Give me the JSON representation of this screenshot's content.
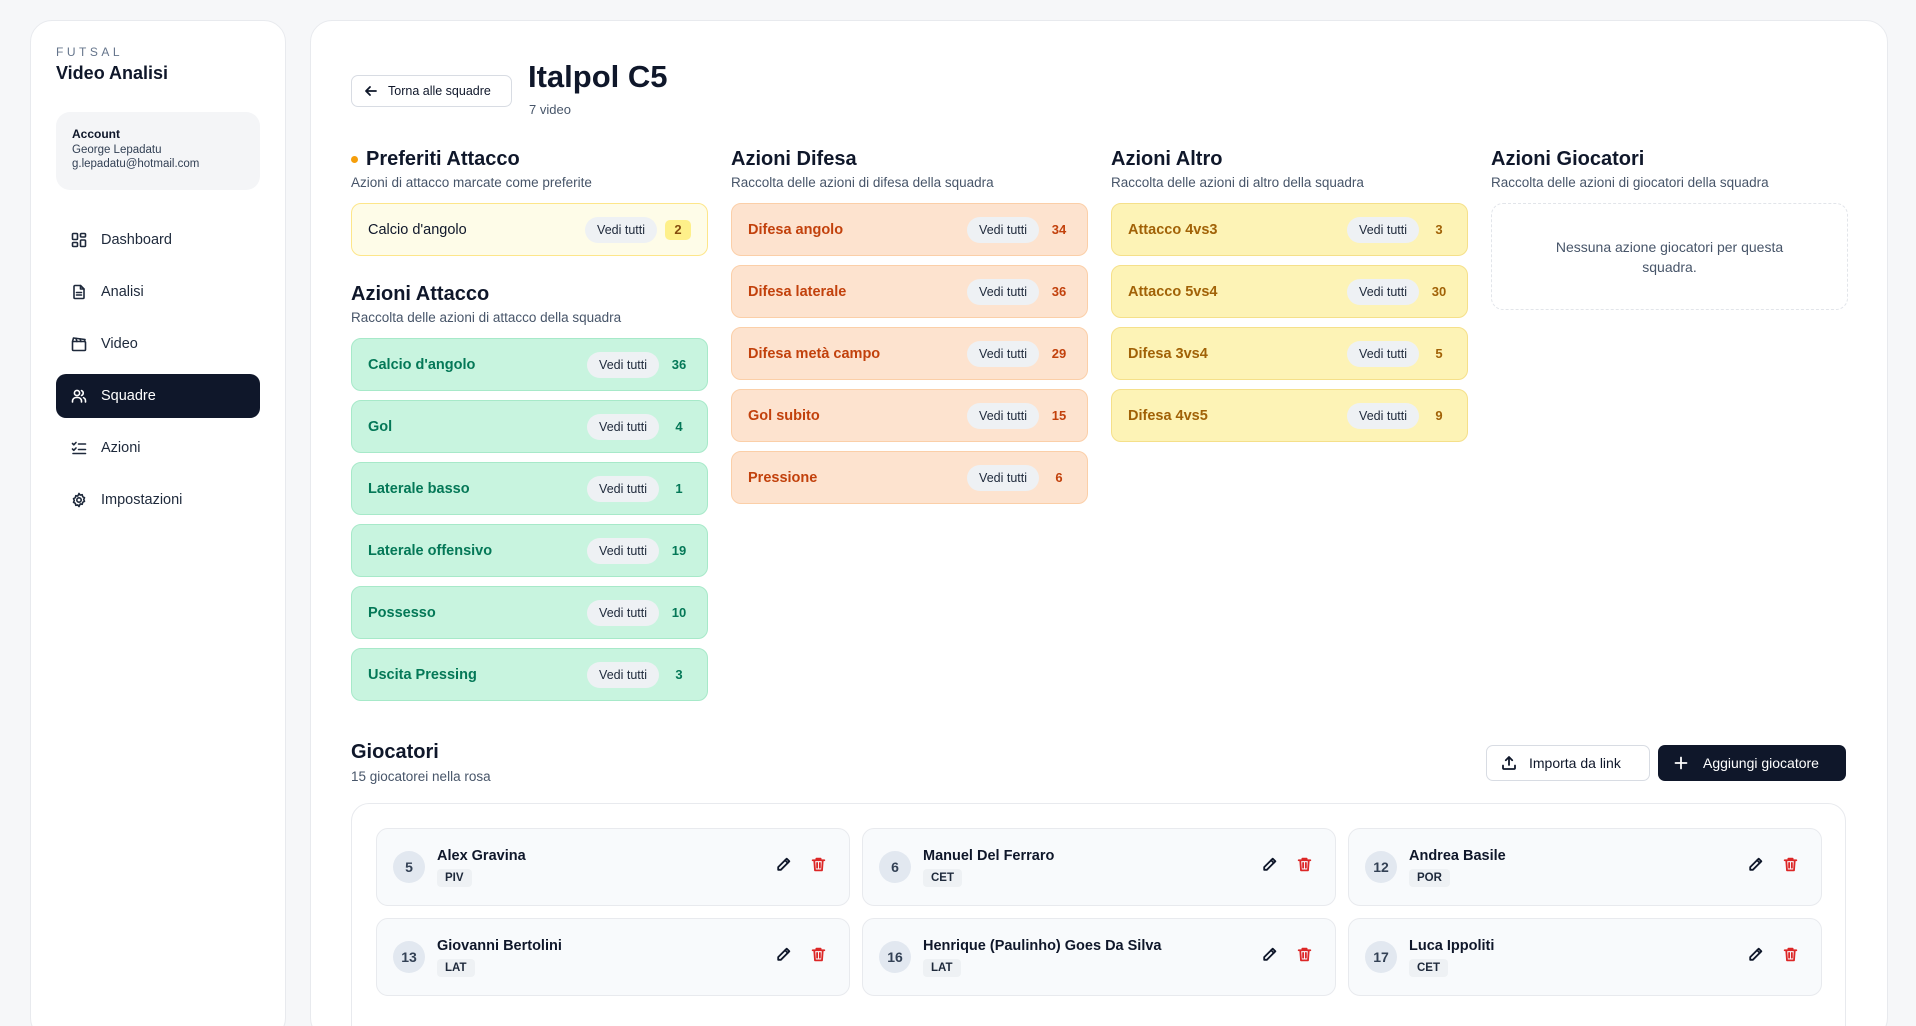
{
  "sidebar": {
    "brand_sup": "FUTSAL",
    "brand_title": "Video Analisi",
    "account": {
      "label": "Account",
      "name": "George Lepadatu",
      "email": "g.lepadatu@hotmail.com"
    },
    "nav": [
      {
        "label": "Dashboard",
        "icon": "dashboard-icon",
        "active": false
      },
      {
        "label": "Analisi",
        "icon": "document-icon",
        "active": false
      },
      {
        "label": "Video",
        "icon": "clapperboard-icon",
        "active": false
      },
      {
        "label": "Squadre",
        "icon": "users-icon",
        "active": true
      },
      {
        "label": "Azioni",
        "icon": "list-check-icon",
        "active": false
      },
      {
        "label": "Impostazioni",
        "icon": "gear-icon",
        "active": false
      }
    ]
  },
  "header": {
    "back_label": "Torna alle squadre",
    "title": "Italpol C5",
    "subtitle": "7 video"
  },
  "common": {
    "see_all": "Vedi tutti"
  },
  "favorites_attack": {
    "title": "Preferiti Attacco",
    "subtitle": "Azioni di attacco marcate come preferite",
    "items": [
      {
        "label": "Calcio d'angolo",
        "count": "2"
      }
    ]
  },
  "attack": {
    "title": "Azioni Attacco",
    "subtitle": "Raccolta delle azioni di attacco della squadra",
    "items": [
      {
        "label": "Calcio d'angolo",
        "count": "36"
      },
      {
        "label": "Gol",
        "count": "4"
      },
      {
        "label": "Laterale basso",
        "count": "1"
      },
      {
        "label": "Laterale offensivo",
        "count": "19"
      },
      {
        "label": "Possesso",
        "count": "10"
      },
      {
        "label": "Uscita Pressing",
        "count": "3"
      }
    ]
  },
  "defense": {
    "title": "Azioni Difesa",
    "subtitle": "Raccolta delle azioni di difesa della squadra",
    "items": [
      {
        "label": "Difesa angolo",
        "count": "34"
      },
      {
        "label": "Difesa laterale",
        "count": "36"
      },
      {
        "label": "Difesa metà campo",
        "count": "29"
      },
      {
        "label": "Gol subito",
        "count": "15"
      },
      {
        "label": "Pressione",
        "count": "6"
      }
    ]
  },
  "other": {
    "title": "Azioni Altro",
    "subtitle": "Raccolta delle azioni di altro della squadra",
    "items": [
      {
        "label": "Attacco 4vs3",
        "count": "3"
      },
      {
        "label": "Attacco 5vs4",
        "count": "30"
      },
      {
        "label": "Difesa 3vs4",
        "count": "5"
      },
      {
        "label": "Difesa 4vs5",
        "count": "9"
      }
    ]
  },
  "players_actions": {
    "title": "Azioni Giocatori",
    "subtitle": "Raccolta delle azioni di giocatori della squadra",
    "empty": "Nessuna azione giocatori per questa squadra."
  },
  "players": {
    "title": "Giocatori",
    "subtitle": "15 giocatorei nella rosa",
    "import_label": "Importa da link",
    "add_label": "Aggiungi giocatore",
    "list": [
      {
        "number": "5",
        "name": "Alex Gravina",
        "role": "PIV"
      },
      {
        "number": "6",
        "name": "Manuel Del Ferraro",
        "role": "CET"
      },
      {
        "number": "12",
        "name": "Andrea Basile",
        "role": "POR"
      },
      {
        "number": "13",
        "name": "Giovanni Bertolini",
        "role": "LAT"
      },
      {
        "number": "16",
        "name": "Henrique (Paulinho) Goes Da Silva",
        "role": "LAT"
      },
      {
        "number": "17",
        "name": "Luca Ippoliti",
        "role": "CET"
      }
    ]
  },
  "colors": {
    "primary": "#0f172a",
    "attack_bg": "#c8f4df",
    "attack_text": "#047857",
    "defense_bg": "#fde3cf",
    "defense_text": "#c2410c",
    "other_bg": "#fdf3b6",
    "other_text": "#a16207",
    "favorite_dot": "#f59e0b",
    "delete": "#dc2626"
  }
}
